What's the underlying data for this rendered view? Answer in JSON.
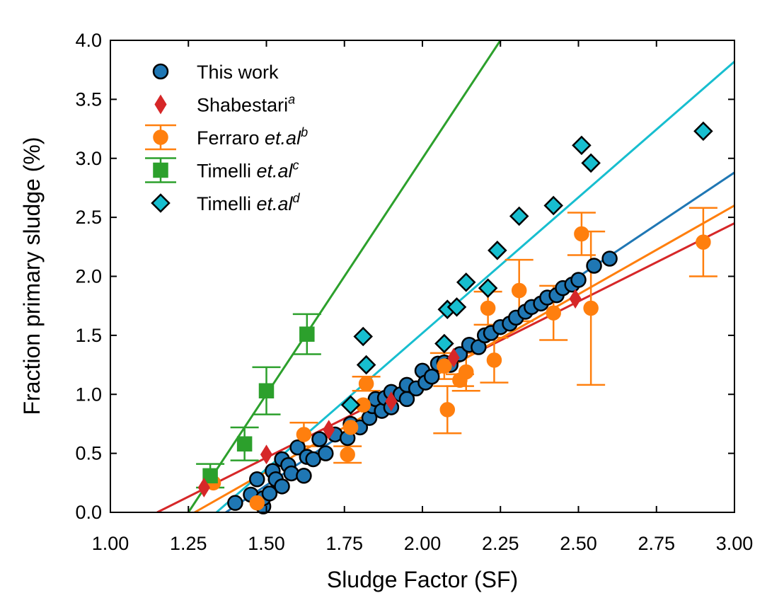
{
  "chart_data": {
    "type": "scatter",
    "title": "",
    "xlabel": "Sludge Factor (SF)",
    "ylabel": "Fraction primary sludge (%)",
    "xlim": [
      1.0,
      3.0
    ],
    "ylim": [
      0.0,
      4.0
    ],
    "xticks": [
      "1.00",
      "1.25",
      "1.50",
      "1.75",
      "2.00",
      "2.25",
      "2.50",
      "2.75",
      "3.00"
    ],
    "yticks": [
      "0.0",
      "0.5",
      "1.0",
      "1.5",
      "2.0",
      "2.5",
      "3.0",
      "3.5",
      "4.0"
    ],
    "grid": false,
    "legend_position": "top-left",
    "colors": {
      "this_work": "#1f77b4",
      "shabestari": "#d62728",
      "ferraro": "#ff7f0e",
      "timelli_c": "#2ca02c",
      "timelli_d": "#17becf",
      "edge": "#000000"
    },
    "series": [
      {
        "key": "this_work",
        "name": "This work",
        "label_parts": [
          {
            "text": "This work",
            "style": "normal"
          }
        ],
        "marker": "circle",
        "points": [
          [
            1.4,
            0.08
          ],
          [
            1.45,
            0.15
          ],
          [
            1.47,
            0.28
          ],
          [
            1.49,
            0.05
          ],
          [
            1.49,
            0.12
          ],
          [
            1.51,
            0.16
          ],
          [
            1.52,
            0.35
          ],
          [
            1.53,
            0.28
          ],
          [
            1.55,
            0.22
          ],
          [
            1.55,
            0.45
          ],
          [
            1.57,
            0.4
          ],
          [
            1.58,
            0.33
          ],
          [
            1.6,
            0.55
          ],
          [
            1.62,
            0.31
          ],
          [
            1.63,
            0.47
          ],
          [
            1.65,
            0.45
          ],
          [
            1.67,
            0.62
          ],
          [
            1.69,
            0.5
          ],
          [
            1.72,
            0.66
          ],
          [
            1.76,
            0.63
          ],
          [
            1.77,
            0.75
          ],
          [
            1.8,
            0.72
          ],
          [
            1.83,
            0.8
          ],
          [
            1.84,
            0.9
          ],
          [
            1.85,
            0.96
          ],
          [
            1.87,
            0.86
          ],
          [
            1.88,
            0.97
          ],
          [
            1.9,
            1.02
          ],
          [
            1.9,
            0.89
          ],
          [
            1.93,
            1.0
          ],
          [
            1.95,
            0.96
          ],
          [
            1.95,
            1.08
          ],
          [
            1.98,
            1.05
          ],
          [
            2.0,
            1.2
          ],
          [
            2.01,
            1.1
          ],
          [
            2.03,
            1.15
          ],
          [
            2.05,
            1.26
          ],
          [
            2.07,
            1.27
          ],
          [
            2.09,
            1.25
          ],
          [
            2.12,
            1.34
          ],
          [
            2.15,
            1.42
          ],
          [
            2.18,
            1.4
          ],
          [
            2.2,
            1.5
          ],
          [
            2.22,
            1.52
          ],
          [
            2.25,
            1.57
          ],
          [
            2.28,
            1.6
          ],
          [
            2.3,
            1.65
          ],
          [
            2.33,
            1.7
          ],
          [
            2.35,
            1.74
          ],
          [
            2.38,
            1.77
          ],
          [
            2.4,
            1.82
          ],
          [
            2.43,
            1.84
          ],
          [
            2.45,
            1.9
          ],
          [
            2.48,
            1.93
          ],
          [
            2.5,
            1.97
          ],
          [
            2.55,
            2.09
          ],
          [
            2.6,
            2.15
          ]
        ],
        "fit": [
          [
            1.37,
            0.0
          ],
          [
            3.0,
            2.88
          ]
        ]
      },
      {
        "key": "shabestari",
        "name": "Shabestari",
        "label_parts": [
          {
            "text": "Shabestari",
            "style": "normal"
          },
          {
            "text": "a",
            "style": "sup"
          }
        ],
        "marker": "thin_diamond",
        "points": [
          [
            1.3,
            0.21
          ],
          [
            1.5,
            0.49
          ],
          [
            1.7,
            0.7
          ],
          [
            1.9,
            0.94
          ],
          [
            2.1,
            1.31
          ],
          [
            2.49,
            1.81
          ]
        ],
        "fit": [
          [
            1.15,
            0.0
          ],
          [
            3.0,
            2.45
          ]
        ]
      },
      {
        "key": "ferraro",
        "name": "Ferraro et.al",
        "label_parts": [
          {
            "text": "Ferraro ",
            "style": "normal"
          },
          {
            "text": "et.al",
            "style": "italic"
          },
          {
            "text": "b",
            "style": "sup"
          }
        ],
        "marker": "circle",
        "points": [
          [
            1.33,
            0.25
          ],
          [
            1.47,
            0.08
          ],
          [
            1.62,
            0.66
          ],
          [
            1.76,
            0.49
          ],
          [
            1.77,
            0.72
          ],
          [
            1.81,
            0.91
          ],
          [
            1.82,
            1.09
          ],
          [
            2.07,
            1.24
          ],
          [
            2.08,
            0.87
          ],
          [
            2.12,
            1.12
          ],
          [
            2.14,
            1.19
          ],
          [
            2.21,
            1.73
          ],
          [
            2.23,
            1.29
          ],
          [
            2.31,
            1.88
          ],
          [
            2.42,
            1.69
          ],
          [
            2.51,
            2.36
          ],
          [
            2.54,
            1.73
          ],
          [
            2.9,
            2.29
          ]
        ],
        "errors": [
          0.0,
          0.0,
          0.1,
          0.07,
          0.0,
          0.0,
          0.06,
          0.11,
          0.2,
          0.05,
          0.16,
          0.14,
          0.19,
          0.26,
          0.23,
          0.18,
          0.65,
          0.29
        ],
        "fit": [
          [
            1.27,
            0.0
          ],
          [
            3.0,
            2.6
          ]
        ]
      },
      {
        "key": "timelli_c",
        "name": "Timelli et.al",
        "label_parts": [
          {
            "text": "Timelli ",
            "style": "normal"
          },
          {
            "text": "et.al",
            "style": "italic"
          },
          {
            "text": "c",
            "style": "sup"
          }
        ],
        "marker": "square",
        "points": [
          [
            1.32,
            0.31
          ],
          [
            1.43,
            0.58
          ],
          [
            1.5,
            1.03
          ],
          [
            1.63,
            1.51
          ]
        ],
        "errors": [
          0.1,
          0.14,
          0.2,
          0.17
        ],
        "fit": [
          [
            1.25,
            0.0
          ],
          [
            2.25,
            4.0
          ]
        ]
      },
      {
        "key": "timelli_d",
        "name": "Timelli et.al",
        "label_parts": [
          {
            "text": "Timelli ",
            "style": "normal"
          },
          {
            "text": "et.al",
            "style": "italic"
          },
          {
            "text": "d",
            "style": "sup"
          }
        ],
        "marker": "diamond",
        "points": [
          [
            1.77,
            0.91
          ],
          [
            1.81,
            1.49
          ],
          [
            1.82,
            1.25
          ],
          [
            2.07,
            1.43
          ],
          [
            2.08,
            1.72
          ],
          [
            2.11,
            1.74
          ],
          [
            2.14,
            1.95
          ],
          [
            2.21,
            1.9
          ],
          [
            2.24,
            2.22
          ],
          [
            2.31,
            2.51
          ],
          [
            2.42,
            2.6
          ],
          [
            2.51,
            3.11
          ],
          [
            2.54,
            2.96
          ],
          [
            2.9,
            3.23
          ]
        ],
        "fit": [
          [
            1.34,
            0.0
          ],
          [
            3.0,
            3.82
          ]
        ]
      }
    ]
  }
}
